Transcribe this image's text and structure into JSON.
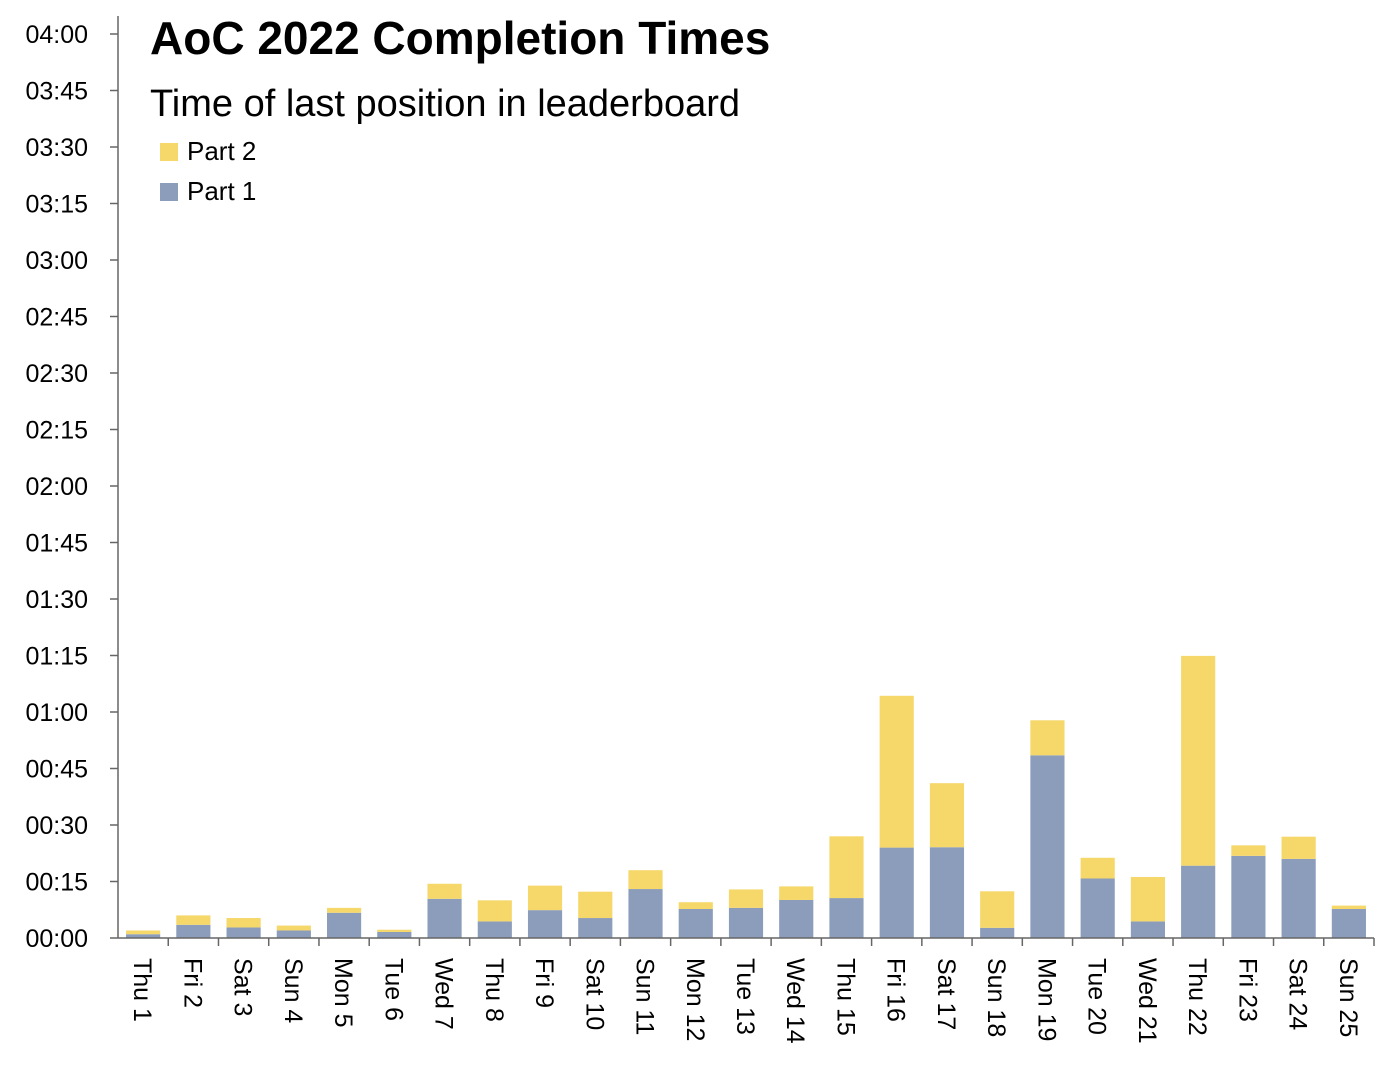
{
  "chart_data": {
    "type": "bar",
    "stacked": true,
    "title": "AoC 2022 Completion Times",
    "subtitle": "Time of last position in leaderboard",
    "y_unit": "minutes",
    "ylim": [
      0,
      240
    ],
    "y_ticks": [
      {
        "value": 0,
        "label": "00:00"
      },
      {
        "value": 15,
        "label": "00:15"
      },
      {
        "value": 30,
        "label": "00:30"
      },
      {
        "value": 45,
        "label": "00:45"
      },
      {
        "value": 60,
        "label": "01:00"
      },
      {
        "value": 75,
        "label": "01:15"
      },
      {
        "value": 90,
        "label": "01:30"
      },
      {
        "value": 105,
        "label": "01:45"
      },
      {
        "value": 120,
        "label": "02:00"
      },
      {
        "value": 135,
        "label": "02:15"
      },
      {
        "value": 150,
        "label": "02:30"
      },
      {
        "value": 165,
        "label": "02:45"
      },
      {
        "value": 180,
        "label": "03:00"
      },
      {
        "value": 195,
        "label": "03:15"
      },
      {
        "value": 210,
        "label": "03:30"
      },
      {
        "value": 225,
        "label": "03:45"
      },
      {
        "value": 240,
        "label": "04:00"
      }
    ],
    "categories": [
      "Thu 1",
      "Fri 2",
      "Sat 3",
      "Sun 4",
      "Mon 5",
      "Tue 6",
      "Wed 7",
      "Thu 8",
      "Fri 9",
      "Sat 10",
      "Sun 11",
      "Mon 12",
      "Tue 13",
      "Wed 14",
      "Thu 15",
      "Fri 16",
      "Sat 17",
      "Sun 18",
      "Mon 19",
      "Tue 20",
      "Wed 21",
      "Thu 22",
      "Fri 23",
      "Sat 24",
      "Sun 25"
    ],
    "series": [
      {
        "name": "Part 1",
        "color": "#8b9dba",
        "values": [
          1.0,
          3.5,
          2.8,
          2.0,
          6.7,
          1.6,
          10.4,
          4.4,
          7.4,
          5.3,
          13.0,
          7.7,
          8.0,
          10.1,
          10.6,
          24.0,
          24.1,
          2.7,
          48.5,
          15.8,
          4.4,
          19.2,
          21.8,
          21.0,
          7.7
        ]
      },
      {
        "name": "Part 2",
        "color": "#f5d76a",
        "values": [
          1.0,
          2.5,
          2.5,
          1.3,
          1.3,
          0.6,
          4.0,
          5.6,
          6.5,
          7.0,
          5.0,
          1.8,
          4.9,
          3.6,
          16.4,
          40.3,
          17.0,
          9.7,
          9.3,
          5.5,
          11.8,
          55.7,
          2.8,
          5.9,
          0.9
        ]
      }
    ],
    "legend": {
      "position": "top-left",
      "entries": [
        "Part 2",
        "Part 1"
      ]
    },
    "grid": false
  }
}
